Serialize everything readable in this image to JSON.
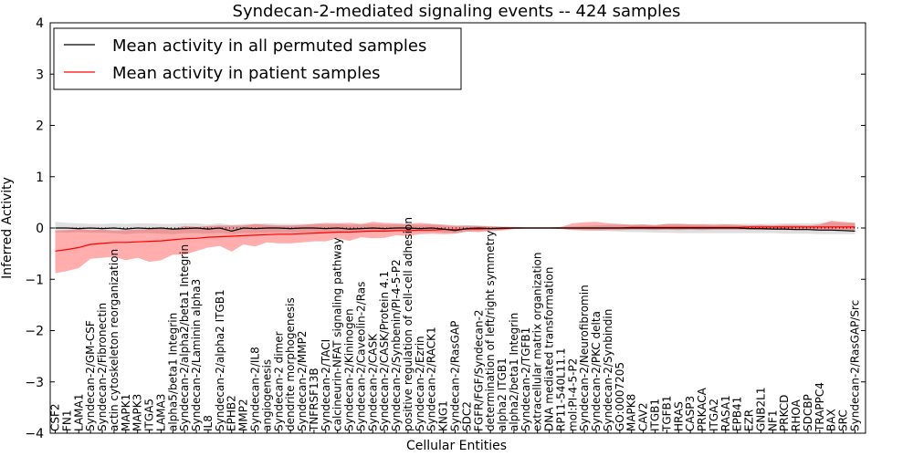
{
  "chart_data": {
    "type": "line",
    "title": "Syndecan-2-mediated signaling events -- 424 samples",
    "xlabel": "Cellular Entities",
    "ylabel": "Inferred Activity",
    "ylim": [
      -4,
      4
    ],
    "yticks": [
      -4,
      -3,
      -2,
      -1,
      0,
      1,
      2,
      3,
      4
    ],
    "grid": false,
    "legend_position": "top-left",
    "categories": [
      "CSF2",
      "FN1",
      "LAMA1",
      "Syndecan-2/GM-CSF",
      "Syndecan-2/Fibronectin",
      "actin cytoskeleton reorganization",
      "MAPK1",
      "MAPK3",
      "ITGA5",
      "LAMA3",
      "alpha5/beta1 Integrin",
      "Syndecan-2/alpha2/beta1 Integrin",
      "Syndecan-2/Laminin alpha3",
      "IL8",
      "Syndecan-2/alpha2 ITGB1",
      "EPHB2",
      "MMP2",
      "Syndecan-2/IL8",
      "angiogenesis",
      "Syndecan-2 dimer",
      "dendrite morphogenesis",
      "Syndecan-2/MMP2",
      "TNFRSF13B",
      "Syndecan-2/TACI",
      "calcineurin-NFAT signaling pathway",
      "Syndecan-2/Kininogen",
      "Syndecan-2/Caveolin-2/Ras",
      "Syndecan-2/CASK",
      "Syndecan-2/CASK/Protein 4.1",
      "Syndecan-2/Synbenin/PI-4-5-P2",
      "positive regulation of cell-cell adhesion",
      "Syndecan-2/Ezrin",
      "Syndecan-2/RACK1",
      "KNG1",
      "Syndecan-2/RasGAP",
      "SDC2",
      "FGFR/FGF/Syndecan-2",
      "determination of left/right symmetry",
      "alpha2 ITGB1",
      "alpha2/beta1 Integrin",
      "Syndecan-2/TGFB1",
      "extracellular matrix organization",
      "DNA mediated transformation",
      "RP11-540L11.1",
      "mol:PI-4-5-P2",
      "Syndecan-2/Neurofibromin",
      "Syndecan-2/PKC delta",
      "Syndecan-2/Synbindin",
      "GO:0007205",
      "MAPK8",
      "CAV2",
      "ITGB1",
      "TGFB1",
      "HRAS",
      "CASP3",
      "PRKACA",
      "ITGA2",
      "RASA1",
      "EPB41",
      "EZR",
      "GNB2L1",
      "NF1",
      "PRKCD",
      "RHOA",
      "SDCBP",
      "TRAPPC4",
      "BAX",
      "SRC",
      "Syndecan-2/RasGAP/Src"
    ],
    "series": [
      {
        "name": "Mean activity in all permuted samples",
        "color": "#000000",
        "values": [
          0.0,
          0.0,
          -0.01,
          0.0,
          -0.01,
          0.0,
          -0.02,
          0.0,
          -0.01,
          0.0,
          -0.02,
          -0.01,
          0.0,
          -0.02,
          0.0,
          -0.06,
          0.0,
          -0.01,
          0.0,
          0.0,
          -0.01,
          0.0,
          0.0,
          -0.01,
          0.0,
          -0.02,
          -0.01,
          0.0,
          -0.01,
          0.0,
          0.0,
          -0.01,
          0.0,
          -0.02,
          -0.05,
          -0.01,
          0.0,
          -0.01,
          0.0,
          0.0,
          0.0,
          0.0,
          0.0,
          0.0,
          0.0,
          0.0,
          0.0,
          0.0,
          0.0,
          0.0,
          0.0,
          0.0,
          0.0,
          0.0,
          0.0,
          0.0,
          0.0,
          0.0,
          0.0,
          -0.01,
          -0.01,
          -0.02,
          -0.02,
          -0.03,
          -0.03,
          -0.04,
          -0.04,
          -0.05,
          -0.06
        ],
        "lower": [
          -0.08,
          -0.09,
          -0.08,
          -0.09,
          -0.09,
          -0.1,
          -0.12,
          -0.1,
          -0.1,
          -0.11,
          -0.12,
          -0.1,
          -0.1,
          -0.11,
          -0.1,
          -0.12,
          -0.1,
          -0.1,
          -0.09,
          -0.09,
          -0.09,
          -0.09,
          -0.08,
          -0.09,
          -0.08,
          -0.09,
          -0.08,
          -0.08,
          -0.08,
          -0.07,
          -0.07,
          -0.08,
          -0.07,
          -0.09,
          -0.1,
          -0.07,
          -0.06,
          -0.05,
          -0.03,
          -0.02,
          -0.01,
          -0.01,
          -0.01,
          -0.02,
          -0.03,
          -0.04,
          -0.05,
          -0.06,
          -0.07,
          -0.08,
          -0.08,
          -0.09,
          -0.09,
          -0.1,
          -0.1,
          -0.1,
          -0.1,
          -0.1,
          -0.1,
          -0.1,
          -0.1,
          -0.1,
          -0.11,
          -0.11,
          -0.11,
          -0.12,
          -0.12,
          -0.12,
          -0.12
        ],
        "upper": [
          0.12,
          0.1,
          0.09,
          0.08,
          0.08,
          0.09,
          0.08,
          0.09,
          0.09,
          0.08,
          0.08,
          0.09,
          0.09,
          0.07,
          0.09,
          0.06,
          0.08,
          0.08,
          0.09,
          0.08,
          0.08,
          0.08,
          0.08,
          0.07,
          0.08,
          0.06,
          0.07,
          0.08,
          0.07,
          0.07,
          0.07,
          0.06,
          0.07,
          0.05,
          0.03,
          0.05,
          0.05,
          0.04,
          0.03,
          0.02,
          0.01,
          0.01,
          0.01,
          0.02,
          0.03,
          0.04,
          0.05,
          0.06,
          0.06,
          0.07,
          0.07,
          0.07,
          0.08,
          0.08,
          0.08,
          0.08,
          0.08,
          0.08,
          0.08,
          0.08,
          0.08,
          0.08,
          0.09,
          0.09,
          0.09,
          0.1,
          0.12,
          0.1,
          0.1
        ]
      },
      {
        "name": "Mean activity in patient samples",
        "color": "#ff0000",
        "values": [
          -0.45,
          -0.42,
          -0.38,
          -0.32,
          -0.3,
          -0.28,
          -0.28,
          -0.27,
          -0.26,
          -0.25,
          -0.23,
          -0.21,
          -0.2,
          -0.18,
          -0.17,
          -0.16,
          -0.15,
          -0.14,
          -0.13,
          -0.12,
          -0.12,
          -0.11,
          -0.1,
          -0.09,
          -0.08,
          -0.08,
          -0.07,
          -0.06,
          -0.06,
          -0.05,
          -0.05,
          -0.04,
          -0.04,
          -0.03,
          -0.03,
          -0.02,
          -0.02,
          -0.01,
          -0.01,
          0.0,
          0.0,
          0.0,
          0.0,
          0.0,
          0.0,
          0.0,
          0.0,
          0.0,
          0.0,
          0.01,
          0.01,
          0.01,
          0.01,
          0.01,
          0.01,
          0.01,
          0.01,
          0.01,
          0.01,
          0.02,
          0.02,
          0.02,
          0.02,
          0.02,
          0.02,
          0.02,
          0.02,
          0.02,
          0.02
        ],
        "lower": [
          -0.88,
          -0.84,
          -0.78,
          -0.6,
          -0.58,
          -0.56,
          -0.63,
          -0.58,
          -0.66,
          -0.63,
          -0.52,
          -0.52,
          -0.45,
          -0.38,
          -0.35,
          -0.46,
          -0.32,
          -0.36,
          -0.28,
          -0.3,
          -0.3,
          -0.28,
          -0.26,
          -0.26,
          -0.2,
          -0.25,
          -0.18,
          -0.2,
          -0.19,
          -0.14,
          -0.16,
          -0.12,
          -0.11,
          -0.12,
          -0.11,
          -0.07,
          -0.08,
          -0.06,
          -0.05,
          -0.02,
          -0.01,
          -0.01,
          -0.01,
          -0.02,
          -0.04,
          -0.05,
          -0.05,
          -0.04,
          -0.04,
          -0.03,
          -0.03,
          -0.04,
          -0.03,
          -0.04,
          -0.03,
          -0.04,
          -0.03,
          -0.03,
          -0.03,
          -0.03,
          -0.04,
          -0.03,
          -0.04,
          -0.04,
          -0.03,
          -0.03,
          -0.04,
          -0.04,
          -0.04
        ],
        "upper": [
          -0.05,
          -0.04,
          -0.02,
          -0.04,
          -0.03,
          -0.05,
          -0.04,
          -0.03,
          -0.02,
          0.0,
          -0.02,
          0.04,
          0.02,
          0.04,
          0.05,
          0.05,
          0.05,
          0.08,
          0.06,
          0.05,
          0.05,
          0.06,
          0.08,
          0.1,
          0.09,
          0.1,
          0.08,
          0.12,
          0.1,
          0.09,
          0.08,
          0.1,
          0.08,
          0.07,
          0.05,
          0.05,
          0.04,
          0.03,
          0.02,
          0.02,
          0.01,
          0.01,
          0.01,
          0.02,
          0.09,
          0.11,
          0.12,
          0.09,
          0.08,
          0.06,
          0.07,
          0.05,
          0.08,
          0.08,
          0.07,
          0.07,
          0.06,
          0.07,
          0.06,
          0.05,
          0.06,
          0.05,
          0.06,
          0.06,
          0.05,
          0.07,
          0.14,
          0.12,
          0.1
        ]
      }
    ]
  }
}
